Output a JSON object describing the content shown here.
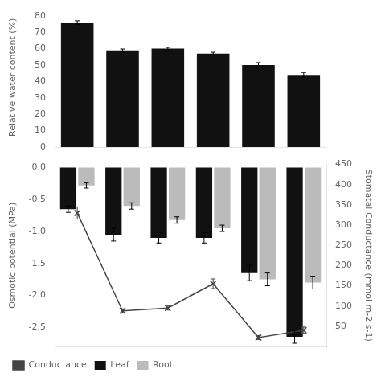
{
  "chart_data": [
    {
      "type": "bar",
      "categories": [
        null,
        null,
        null,
        null,
        null,
        null
      ],
      "values": [
        76,
        59,
        60,
        57,
        50,
        44
      ],
      "errors": [
        1.0,
        0.8,
        0.8,
        0.8,
        1.5,
        1.5
      ],
      "color": "#111111",
      "ylabel": "Relative water content (%)",
      "ylim": [
        0,
        85
      ],
      "yticks": [
        0,
        10,
        20,
        30,
        40,
        50,
        60,
        70,
        80
      ],
      "grid": false,
      "tick_labels": "y"
    },
    {
      "type": "bar",
      "categories": [
        null,
        null,
        null,
        null,
        null,
        null
      ],
      "series": [
        {
          "name": "Leaf",
          "color": "#111111",
          "values": [
            -0.65,
            -1.05,
            -1.1,
            -1.1,
            -1.65,
            -2.65
          ],
          "errors": [
            0.05,
            0.1,
            0.08,
            0.08,
            0.12,
            0.1
          ]
        },
        {
          "name": "Root",
          "color": "#bbbbbb",
          "values": [
            -0.28,
            -0.6,
            -0.82,
            -0.95,
            -1.75,
            -1.8
          ],
          "errors": [
            0.04,
            0.05,
            0.05,
            0.05,
            0.1,
            0.1
          ]
        },
        {
          "name": "Conductance",
          "type": "line",
          "axis": "y2",
          "color": "#444444",
          "marker": "x",
          "values": [
            330,
            88,
            95,
            155,
            22,
            40
          ],
          "errors": [
            15,
            5,
            5,
            12,
            5,
            8
          ]
        }
      ],
      "ylabel": "Osmotic potential (MPa)",
      "y2label": "Stomatal Conductance (mmol m-2 s-1)",
      "ylim": [
        -2.8,
        0.05
      ],
      "yticks": [
        {
          "value": 0.0,
          "label": "0.0"
        },
        {
          "value": -0.5,
          "label": "-0.5"
        },
        {
          "value": -1.0,
          "label": "-1.0"
        },
        {
          "value": -1.5,
          "label": "-1.5"
        },
        {
          "value": -2.0,
          "label": "-2.0"
        },
        {
          "value": -2.5,
          "label": "-2.5"
        }
      ],
      "y2lim": [
        0,
        450
      ],
      "y2ticks": [
        50,
        100,
        150,
        200,
        250,
        300,
        350,
        400,
        450
      ],
      "legend": "lower left",
      "grid": false,
      "tick_labels": "y"
    }
  ]
}
